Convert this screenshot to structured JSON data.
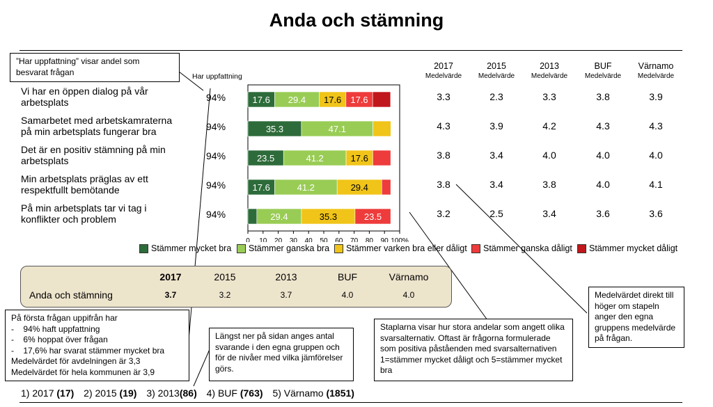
{
  "title": "Anda och stämning",
  "har_label": "Har uppfattning",
  "columns": [
    {
      "year": "2017",
      "sub": "Medelvärde"
    },
    {
      "year": "2015",
      "sub": "Medelvärde"
    },
    {
      "year": "2013",
      "sub": "Medelvärde"
    },
    {
      "year": "BUF",
      "sub": "Medelvärde"
    },
    {
      "year": "Värnamo",
      "sub": "Medelvärde"
    }
  ],
  "questions": [
    {
      "text": "Vi har en öppen dialog på vår arbetsplats",
      "har": "94%",
      "means": [
        "3.3",
        "2.3",
        "3.3",
        "3.8",
        "3.9"
      ]
    },
    {
      "text": "Samarbetet med arbetskamraterna på min arbetsplats fungerar bra",
      "har": "94%",
      "means": [
        "4.3",
        "3.9",
        "4.2",
        "4.3",
        "4.3"
      ]
    },
    {
      "text": "Det är en positiv stämning på min arbetsplats",
      "har": "94%",
      "means": [
        "3.8",
        "3.4",
        "4.0",
        "4.0",
        "4.0"
      ]
    },
    {
      "text": "Min arbetsplats präglas av ett respektfullt bemötande",
      "har": "94%",
      "means": [
        "3.8",
        "3.4",
        "3.8",
        "4.0",
        "4.1"
      ]
    },
    {
      "text": "På min arbetsplats tar vi tag i konflikter och problem",
      "har": "94%",
      "means": [
        "3.2",
        "2.5",
        "3.4",
        "3.6",
        "3.6"
      ]
    }
  ],
  "chart_data": {
    "type": "bar",
    "stacked": true,
    "orientation": "horizontal",
    "categories": [
      "Vi har en öppen dialog på vår arbetsplats",
      "Samarbetet med arbetskamraterna på min arbetsplats fungerar bra",
      "Det är en positiv stämning på min arbetsplats",
      "Min arbetsplats präglas av ett respektfullt bemötande",
      "På min arbetsplats tar vi tag i konflikter och problem"
    ],
    "series": [
      {
        "name": "Stämmer mycket bra",
        "color": "#2e6b3a",
        "values": [
          17.6,
          35.3,
          23.5,
          17.6,
          5.9
        ]
      },
      {
        "name": "Stämmer ganska bra",
        "color": "#99cc55",
        "values": [
          29.4,
          47.1,
          41.2,
          41.2,
          29.4
        ]
      },
      {
        "name": "Stämmer varken bra eller dåligt",
        "color": "#f0c419",
        "values": [
          17.6,
          11.8,
          17.6,
          29.4,
          35.3
        ]
      },
      {
        "name": "Stämmer ganska dåligt",
        "color": "#ee3b3b",
        "values": [
          17.6,
          0,
          11.8,
          5.9,
          23.5
        ]
      },
      {
        "name": "Stämmer mycket dåligt",
        "color": "#c0171c",
        "values": [
          11.8,
          0,
          0,
          0,
          0
        ]
      }
    ],
    "xlim": [
      0,
      100
    ],
    "xticks": [
      "0",
      "10",
      "20",
      "30",
      "40",
      "50",
      "60",
      "70",
      "80",
      "90",
      "100%"
    ],
    "label_threshold": 15
  },
  "summary": {
    "headers": [
      "2017",
      "2015",
      "2013",
      "BUF",
      "Värnamo"
    ],
    "label": "Anda och stämning",
    "values": [
      "3.7",
      "3.2",
      "3.7",
      "4.0",
      "4.0"
    ]
  },
  "notes": {
    "har_note": "”Har uppfattning” visar andel som besvarat frågan",
    "first_q_lines": [
      "På första frågan uppifrån har",
      "-    94% haft uppfattning",
      "-    6% hoppat över frågan",
      "-    17,6% har svarat stämmer mycket bra",
      "Medelvärdet för avdelningen är 3,3",
      "Medelvärdet för hela kommunen är 3,9"
    ],
    "bottom_note": "Längst ner på sidan anges antal svarande i den egna gruppen och för de nivåer med vilka jämförelser görs.",
    "bars_note": "Staplarna visar hur stora andelar som angett olika svarsalternativ. Oftast är frågorna formulerade som positiva påståenden med svarsalternativen 1=stämmer mycket dåligt och 5=stämmer mycket bra",
    "mean_note": "Medelvärdet direkt till höger om stapeln anger den egna gruppens medelvärde på frågan."
  },
  "footer": [
    {
      "label": "1) 2017",
      "n": "(17)"
    },
    {
      "label": "2) 2015",
      "n": "(19)"
    },
    {
      "label": "3) 2013",
      "n": "(86)"
    },
    {
      "label": "4) BUF",
      "n": "(763)"
    },
    {
      "label": "5) Värnamo",
      "n": "(1851)"
    }
  ]
}
